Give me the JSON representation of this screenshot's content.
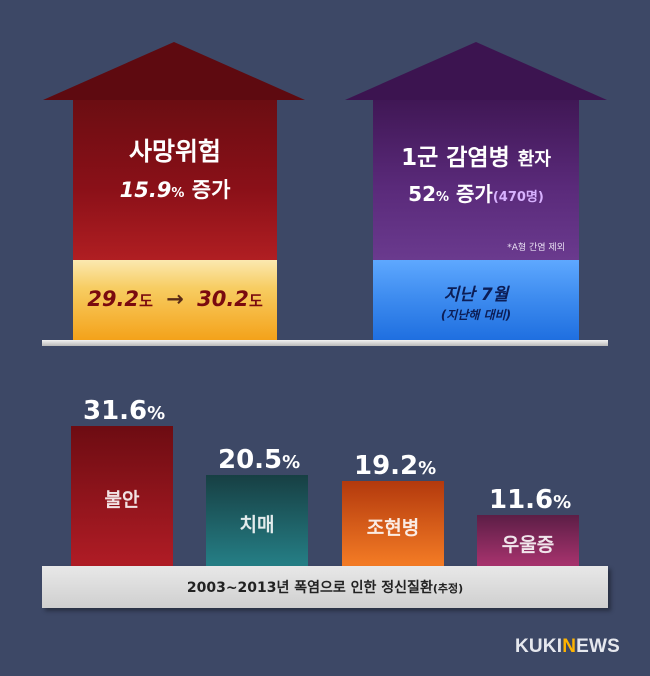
{
  "arrows": {
    "left": {
      "title": "사망위험",
      "value": "15.9",
      "value_unit": "%",
      "value_suffix": "증가",
      "temp_from": "29.2",
      "temp_to": "30.2",
      "temp_unit": "도",
      "temp_arrow": "→"
    },
    "right": {
      "title_main": "1군 감염병",
      "title_suffix": "환자",
      "value": "52",
      "value_unit": "%",
      "value_suffix": "증가",
      "value_note": "(470명)",
      "footnote": "*A형 간염 제외",
      "period": "지난 7월",
      "period_note": "(지난해 대비)"
    }
  },
  "chart_data": {
    "type": "bar",
    "title": "2003~2013년 폭염으로 인한 정신질환",
    "title_suffix": "(추정)",
    "categories": [
      "불안",
      "치매",
      "조현병",
      "우울증"
    ],
    "values": [
      31.6,
      20.5,
      19.2,
      11.6
    ],
    "value_suffix": "%",
    "ylim": [
      0,
      31.6
    ],
    "colors": [
      [
        "#6d0c12",
        "#b01c25"
      ],
      [
        "#173f43",
        "#257f86"
      ],
      [
        "#b3390d",
        "#f47c25"
      ],
      [
        "#5c1e46",
        "#a8336e"
      ]
    ]
  },
  "logo": {
    "prefix": "KUKI",
    "mid": "N",
    "suffix": "EWS"
  }
}
